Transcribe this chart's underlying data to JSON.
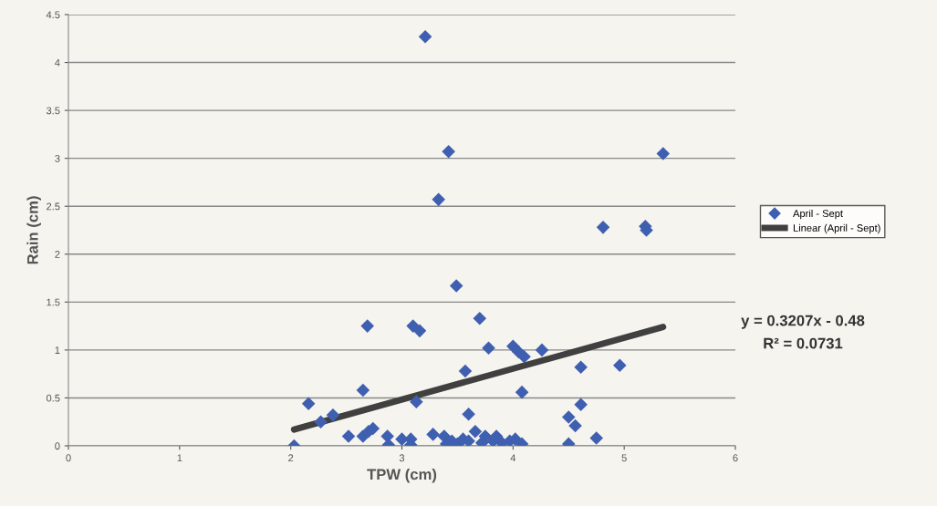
{
  "chart_data": {
    "type": "scatter",
    "xlabel": "TPW (cm)",
    "ylabel": "Rain (cm)",
    "xlim": [
      0,
      6
    ],
    "xticks": [
      0,
      1,
      2,
      3,
      4,
      5,
      6
    ],
    "ylim": [
      0,
      4.5
    ],
    "yticks": [
      0,
      0.5,
      1,
      1.5,
      2,
      2.5,
      3,
      3.5,
      4,
      4.5
    ],
    "grid": "y",
    "legend": "right",
    "marker": "diamond",
    "series": [
      {
        "name": "April - Sept",
        "color": "#3f5fb0",
        "x": [
          2.03,
          2.16,
          2.27,
          2.38,
          2.52,
          2.65,
          2.65,
          2.7,
          2.74,
          2.69,
          2.87,
          2.88,
          3.0,
          3.08,
          3.08,
          3.1,
          3.16,
          3.13,
          3.21,
          3.28,
          3.33,
          3.42,
          3.49,
          3.57,
          3.6,
          3.7,
          3.78,
          3.66,
          4.0,
          4.05,
          4.1,
          4.08,
          4.26,
          4.81,
          5.19,
          5.2,
          5.35,
          4.61,
          4.96,
          4.61,
          4.5,
          4.56,
          4.5,
          4.75,
          3.38,
          3.4,
          3.45,
          3.5,
          3.55,
          3.6,
          3.72,
          3.75,
          3.82,
          3.85,
          3.9,
          3.97,
          4.02,
          4.08
        ],
        "values": [
          0.0,
          0.44,
          0.25,
          0.32,
          0.1,
          0.58,
          0.1,
          0.15,
          0.18,
          1.25,
          0.1,
          0.01,
          0.07,
          0.07,
          0.01,
          1.25,
          1.2,
          0.46,
          4.27,
          0.12,
          2.57,
          3.07,
          1.67,
          0.78,
          0.33,
          1.33,
          1.02,
          0.15,
          1.04,
          0.98,
          0.93,
          0.56,
          1.0,
          2.28,
          2.29,
          2.25,
          3.05,
          0.82,
          0.84,
          0.43,
          0.3,
          0.21,
          0.02,
          0.08,
          0.1,
          0.02,
          0.05,
          0.02,
          0.07,
          0.05,
          0.03,
          0.1,
          0.05,
          0.1,
          0.03,
          0.05,
          0.07,
          0.02
        ]
      },
      {
        "name": "Linear (April - Sept)",
        "color": "#404040",
        "type": "line",
        "marker": "none",
        "x": [
          2.03,
          5.35
        ],
        "values": [
          0.17,
          1.24
        ]
      }
    ],
    "annotations": [
      "y = 0.3207x - 0.48",
      "R² = 0.0731"
    ]
  }
}
